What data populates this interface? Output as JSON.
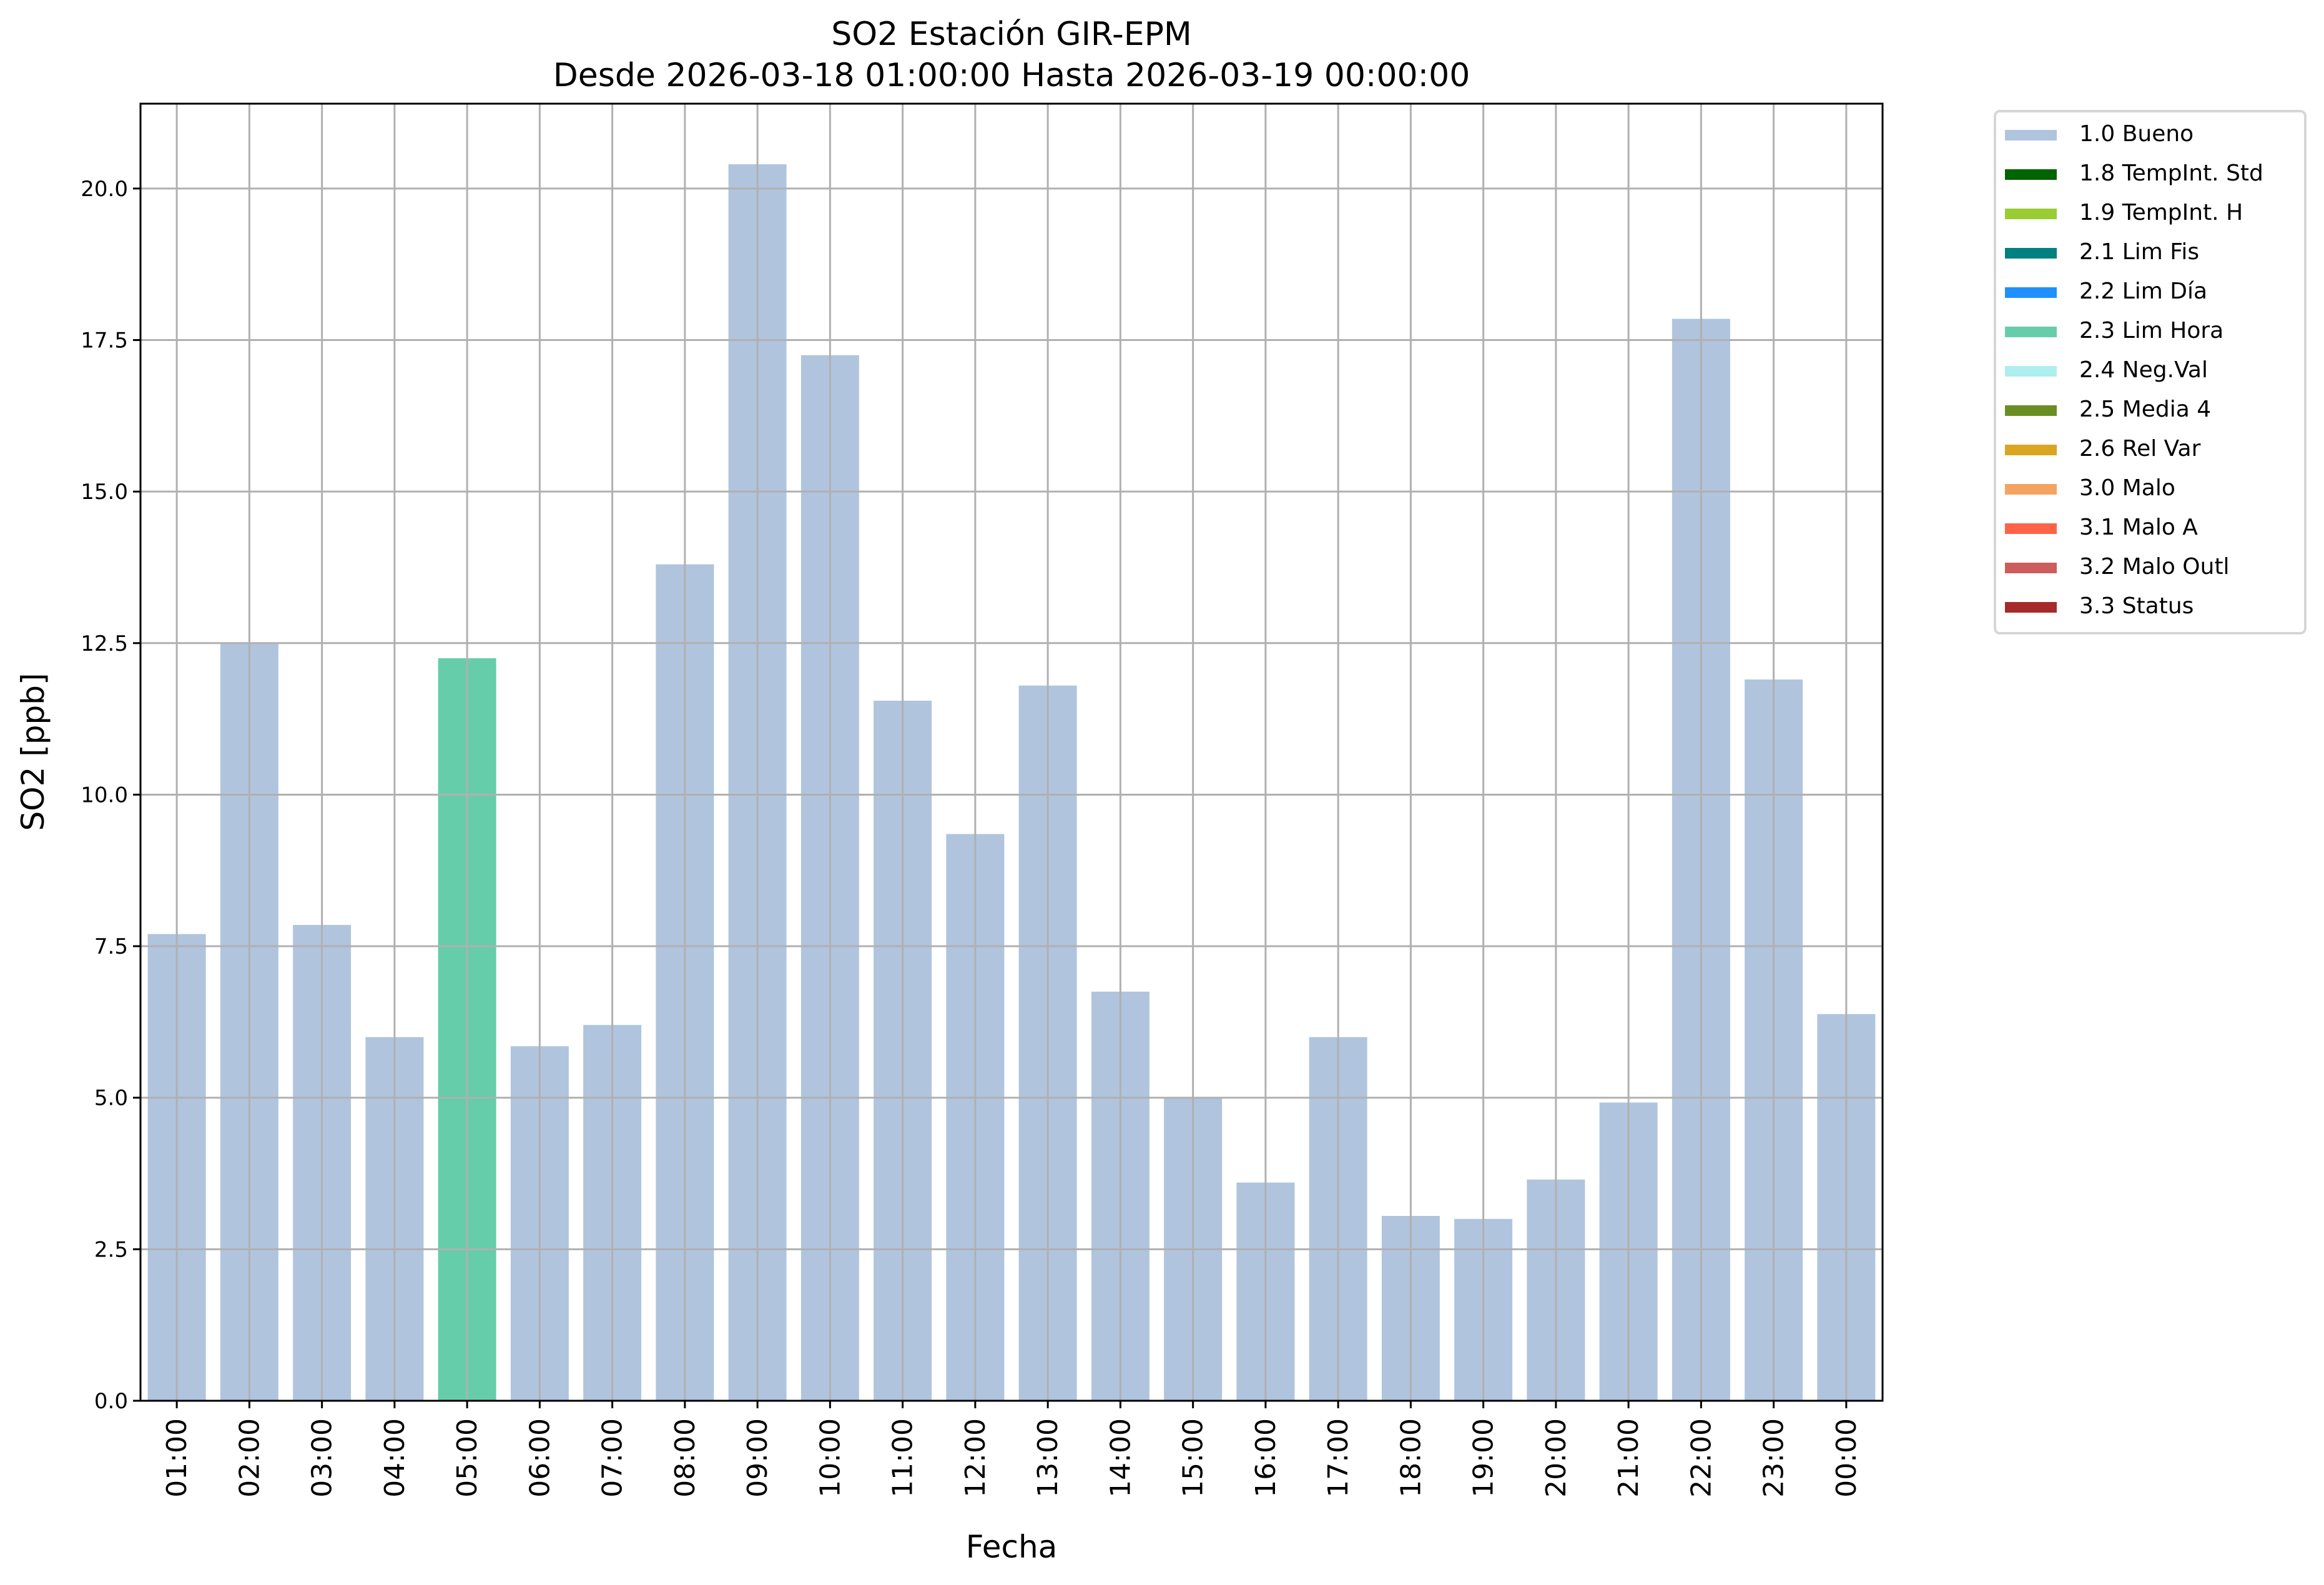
{
  "chart_data": {
    "type": "bar",
    "title": "SO2 Estación GIR-EPM",
    "subtitle": "Desde 2026-03-18 01:00:00 Hasta 2026-03-19 00:00:00",
    "xlabel": "Fecha",
    "ylabel": "SO2 [ppb]",
    "ylim": [
      0,
      21.4
    ],
    "yticks": [
      "0.0",
      "2.5",
      "5.0",
      "7.5",
      "10.0",
      "12.5",
      "15.0",
      "17.5",
      "20.0"
    ],
    "grid": true,
    "legend_placement": "outside-top-right",
    "categories": [
      "01:00",
      "02:00",
      "03:00",
      "04:00",
      "05:00",
      "06:00",
      "07:00",
      "08:00",
      "09:00",
      "10:00",
      "11:00",
      "12:00",
      "13:00",
      "14:00",
      "15:00",
      "16:00",
      "17:00",
      "18:00",
      "19:00",
      "20:00",
      "21:00",
      "22:00",
      "23:00",
      "00:00"
    ],
    "values": [
      7.7,
      12.5,
      7.85,
      6.0,
      12.25,
      5.85,
      6.2,
      13.8,
      20.4,
      17.25,
      11.55,
      9.35,
      11.8,
      6.75,
      5.0,
      3.6,
      6.0,
      3.05,
      3.0,
      3.65,
      4.92,
      17.85,
      11.9,
      6.38
    ],
    "flags": [
      "1.0 Bueno",
      "1.0 Bueno",
      "1.0 Bueno",
      "1.0 Bueno",
      "2.3 Lim Hora",
      "1.0 Bueno",
      "1.0 Bueno",
      "1.0 Bueno",
      "1.0 Bueno",
      "1.0 Bueno",
      "1.0 Bueno",
      "1.0 Bueno",
      "1.0 Bueno",
      "1.0 Bueno",
      "1.0 Bueno",
      "1.0 Bueno",
      "1.0 Bueno",
      "1.0 Bueno",
      "1.0 Bueno",
      "1.0 Bueno",
      "1.0 Bueno",
      "1.0 Bueno",
      "1.0 Bueno",
      "1.0 Bueno"
    ],
    "legend": [
      {
        "label": "1.0 Bueno",
        "color": "#b0c4de"
      },
      {
        "label": "1.8 TempInt. Std",
        "color": "#006400"
      },
      {
        "label": "1.9 TempInt. H",
        "color": "#9acd32"
      },
      {
        "label": "2.1 Lim Fis",
        "color": "#008080"
      },
      {
        "label": "2.2 Lim Día",
        "color": "#1e90ff"
      },
      {
        "label": "2.3 Lim Hora",
        "color": "#66cdaa"
      },
      {
        "label": "2.4 Neg.Val",
        "color": "#afeeee"
      },
      {
        "label": "2.5 Media 4",
        "color": "#6b8e23"
      },
      {
        "label": "2.6 Rel Var",
        "color": "#daa520"
      },
      {
        "label": "3.0 Malo",
        "color": "#f4a460"
      },
      {
        "label": "3.1 Malo A",
        "color": "#ff6347"
      },
      {
        "label": "3.2 Malo Outl",
        "color": "#cd5c5c"
      },
      {
        "label": "3.3 Status",
        "color": "#a52a2a"
      }
    ]
  }
}
